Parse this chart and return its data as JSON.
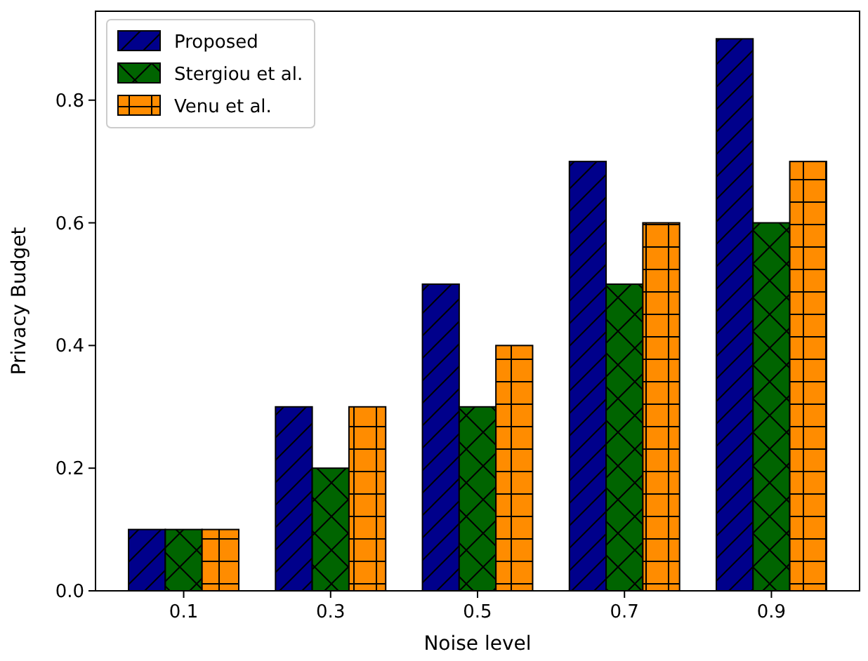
{
  "chart_data": {
    "type": "bar",
    "xlabel": "Noise level",
    "ylabel": "Privacy Budget",
    "categories": [
      "0.1",
      "0.3",
      "0.5",
      "0.7",
      "0.9"
    ],
    "series": [
      {
        "name": "Proposed",
        "color": "#00008b",
        "values": [
          0.1,
          0.3,
          0.5,
          0.7,
          0.9
        ]
      },
      {
        "name": "Stergiou et al.",
        "color": "#006400",
        "values": [
          0.1,
          0.2,
          0.3,
          0.5,
          0.6
        ]
      },
      {
        "name": "Venu et al.",
        "color": "#ff8c00",
        "values": [
          0.1,
          0.3,
          0.4,
          0.6,
          0.7
        ]
      }
    ],
    "ylim": [
      0,
      0.945
    ],
    "yticks": [
      {
        "value": 0,
        "label": "0.0"
      },
      {
        "value": 0.2,
        "label": "0.2"
      },
      {
        "value": 0.4,
        "label": "0.4"
      },
      {
        "value": 0.6,
        "label": "0.6"
      },
      {
        "value": 0.8,
        "label": "0.8"
      }
    ],
    "grid": false,
    "legend": "top left"
  }
}
